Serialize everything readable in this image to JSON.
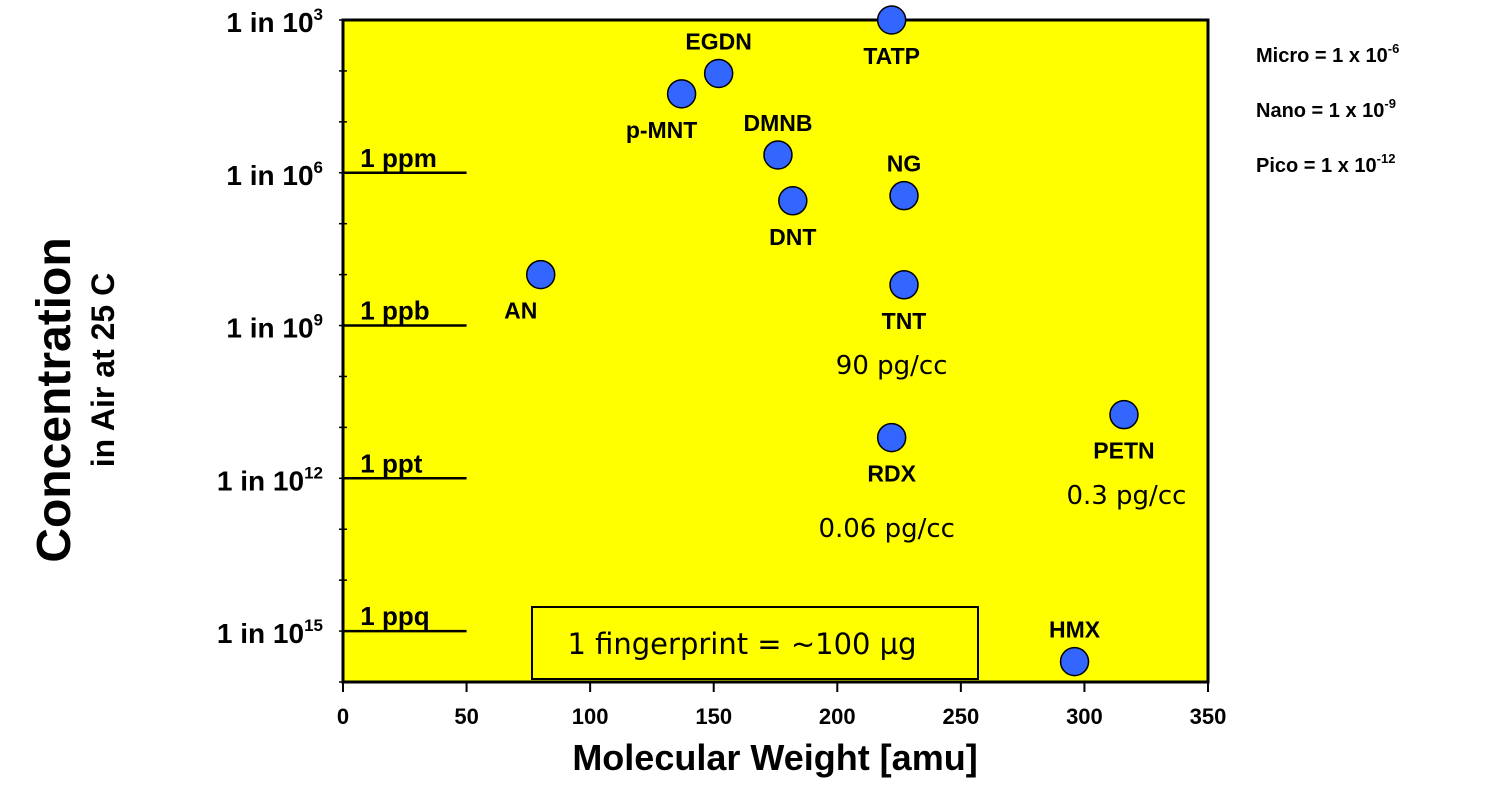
{
  "chart_data": {
    "type": "scatter",
    "xlabel": "Molecular Weight [amu]",
    "ylabel": "Concentration",
    "ylabel_sub": "in Air  at 25 C",
    "xlim": [
      0,
      350
    ],
    "x_ticks": [
      "0",
      "50",
      "100",
      "150",
      "200",
      "250",
      "300",
      "350"
    ],
    "y_scale": "log-inverse (1 in 10^n)",
    "ylim_exponent": [
      3,
      16
    ],
    "y_ticks": [
      {
        "exp": 3,
        "base": "1 in 10",
        "sup": "3"
      },
      {
        "exp": 6,
        "base": "1 in 10",
        "sup": "6"
      },
      {
        "exp": 9,
        "base": "1 in 10",
        "sup": "9"
      },
      {
        "exp": 12,
        "base": "1 in 10",
        "sup": "12"
      },
      {
        "exp": 15,
        "base": "1 in 10",
        "sup": "15"
      }
    ],
    "background": "#ffff00",
    "marker_color": "#3366ff",
    "points": [
      {
        "label": "TATP",
        "x": 222,
        "exp": 3.0,
        "label_pos": "below"
      },
      {
        "label": "EGDN",
        "x": 152,
        "exp": 4.05,
        "label_pos": "above"
      },
      {
        "label": "p-MNT",
        "x": 137,
        "exp": 4.45,
        "label_pos": "below-left"
      },
      {
        "label": "DMNB",
        "x": 176,
        "exp": 5.65,
        "label_pos": "above"
      },
      {
        "label": "DNT",
        "x": 182,
        "exp": 6.55,
        "label_pos": "below"
      },
      {
        "label": "NG",
        "x": 227,
        "exp": 6.45,
        "label_pos": "above"
      },
      {
        "label": "AN",
        "x": 80,
        "exp": 8.0,
        "label_pos": "below-left"
      },
      {
        "label": "TNT",
        "x": 227,
        "exp": 8.2,
        "label_pos": "below"
      },
      {
        "label": "RDX",
        "x": 222,
        "exp": 11.2,
        "label_pos": "below"
      },
      {
        "label": "PETN",
        "x": 316,
        "exp": 10.75,
        "label_pos": "below"
      },
      {
        "label": "HMX",
        "x": 296,
        "exp": 15.6,
        "label_pos": "above"
      }
    ],
    "reference_lines": [
      {
        "label": "1 ppm",
        "exp": 6
      },
      {
        "label": "1 ppb",
        "exp": 9
      },
      {
        "label": "1 ppt",
        "exp": 12
      },
      {
        "label": "1 ppq",
        "exp": 15
      }
    ],
    "annotations": [
      {
        "text": "90 pg/cc",
        "x": 222,
        "exp": 9.95
      },
      {
        "text": "0.06 pg/cc",
        "x": 220,
        "exp": 13.15
      },
      {
        "text": "0.3 pg/cc",
        "x": 317,
        "exp": 12.5
      }
    ],
    "boxed_note": "1 fingerprint = ~100 µg",
    "prefixes": [
      {
        "base": "Micro = 1 x 10",
        "sup": "-6"
      },
      {
        "base": "Nano = 1 x 10",
        "sup": "-9"
      },
      {
        "base": "Pico = 1 x 10",
        "sup": "-12"
      }
    ]
  }
}
